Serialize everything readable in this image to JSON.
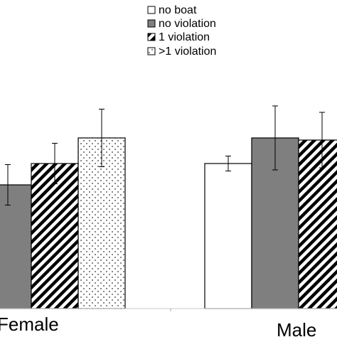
{
  "chart_data": {
    "type": "bar",
    "title": "",
    "xlabel": "",
    "ylabel": "",
    "categories": [
      "Female",
      "Male"
    ],
    "ylim": [
      0,
      100
    ],
    "grid": false,
    "legend_position": "top-center",
    "series": [
      {
        "name": "no boat",
        "fill": "#ffffff",
        "pattern": "solid",
        "values": [
          null,
          68
        ],
        "errors": [
          null,
          3.5
        ]
      },
      {
        "name": "no violation",
        "fill": "#7f7f7f",
        "pattern": "solid",
        "values": [
          58,
          80
        ],
        "errors": [
          9.5,
          15
        ]
      },
      {
        "name": "1 violation",
        "fill": "#000000",
        "pattern": "hatch",
        "values": [
          68,
          79
        ],
        "errors": [
          9.5,
          13
        ]
      },
      {
        "name": ">1 violation",
        "fill": "#ffffff",
        "pattern": "dots",
        "values": [
          80,
          null
        ],
        "errors": [
          13.5,
          null
        ]
      }
    ]
  }
}
